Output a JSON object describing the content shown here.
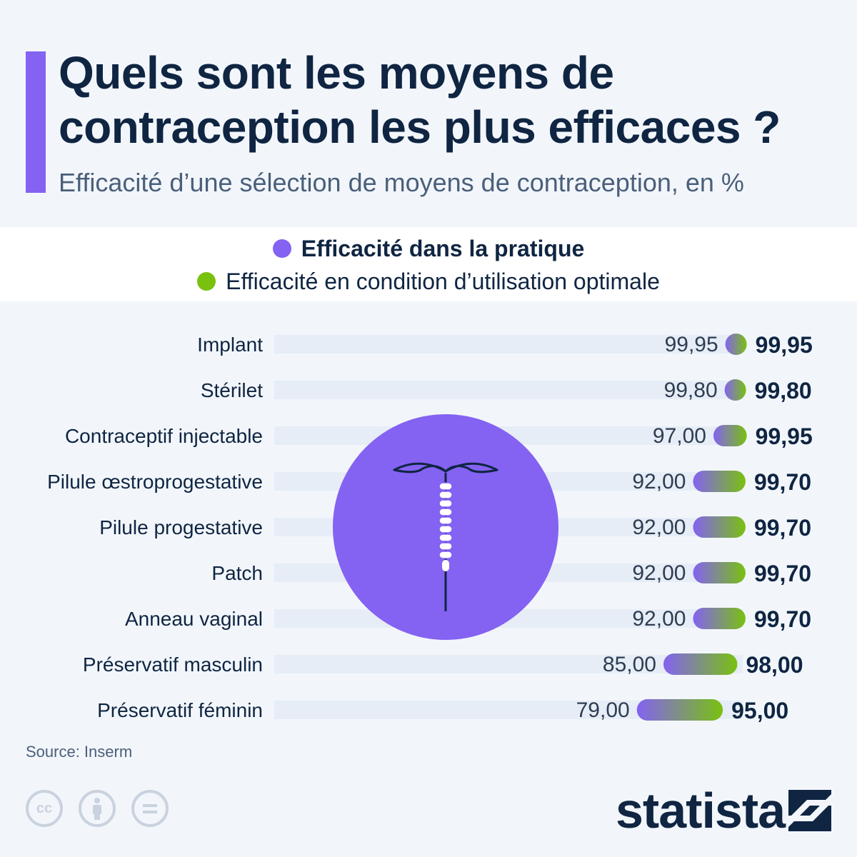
{
  "header": {
    "title": "Quels sont les moyens de contraception les plus efficaces ?",
    "subtitle": "Efficacité d’une sélection de moyens de contraception, en %"
  },
  "legend": {
    "practice": "Efficacité dans la pratique",
    "optimal": "Efficacité en condition d’utilisation optimale"
  },
  "colors": {
    "practice": "#8462f2",
    "optimal": "#79c10f",
    "track": "#e6edf6",
    "text": "#0f2542"
  },
  "chart_data": {
    "type": "bar",
    "categories": [
      "Implant",
      "Stérilet",
      "Contraceptif injectable",
      "Pilule œstroprogestative",
      "Pilule progestative",
      "Patch",
      "Anneau vaginal",
      "Préservatif masculin",
      "Préservatif féminin"
    ],
    "series": [
      {
        "name": "Efficacité dans la pratique",
        "values": [
          99.95,
          99.8,
          97.0,
          92.0,
          92.0,
          92.0,
          92.0,
          85.0,
          79.0
        ],
        "labels": [
          "99,95",
          "99,80",
          "97,00",
          "92,00",
          "92,00",
          "92,00",
          "92,00",
          "85,00",
          "79,00"
        ]
      },
      {
        "name": "Efficacité en condition d’utilisation optimale",
        "values": [
          99.95,
          99.8,
          99.95,
          99.7,
          99.7,
          99.7,
          99.7,
          98.0,
          95.0
        ],
        "labels": [
          "99,95",
          "99,80",
          "99,95",
          "99,70",
          "99,70",
          "99,70",
          "99,70",
          "98,00",
          "95,00"
        ]
      }
    ],
    "xlim": [
      0,
      100
    ],
    "legend_position": "top-center",
    "grid": false
  },
  "footer": {
    "source": "Source: Inserm",
    "brand": "statista",
    "cc_icon": "creative-commons-icon",
    "by_icon": "attribution-icon",
    "nd_icon": "no-derivatives-icon"
  }
}
